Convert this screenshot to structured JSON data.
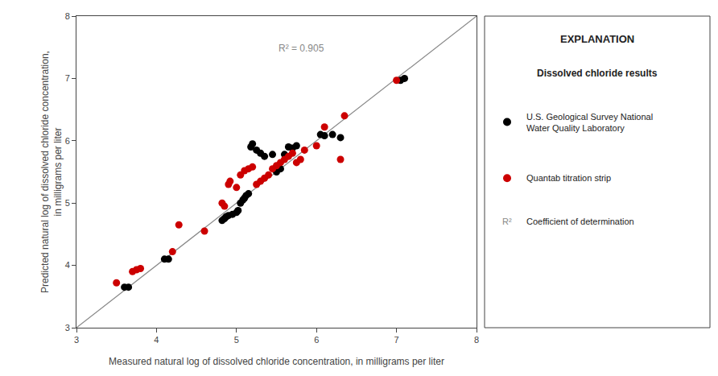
{
  "chart_data": {
    "type": "scatter",
    "xlabel": "Measured natural log of dissolved chloride concentration, in milligrams per liter",
    "ylabel": "Predicted natural log of dissolved chloride concentration,\nin milligrams per liter",
    "xlim": [
      3,
      8
    ],
    "ylim": [
      3,
      8
    ],
    "xticks": [
      3,
      4,
      5,
      6,
      7,
      8
    ],
    "yticks": [
      3,
      4,
      5,
      6,
      7,
      8
    ],
    "grid": false,
    "legend": "right",
    "legend_title": "EXPLANATION",
    "legend_subtitle": "Dissolved chloride results",
    "legend_note": {
      "symbol": "R²",
      "text": "Coefficient of determination",
      "color": "#888888"
    },
    "annotations": [
      {
        "text": "R² = 0.905",
        "x": 5.5,
        "y": 7.6,
        "color": "#888888"
      }
    ],
    "series": [
      {
        "type": "line",
        "color": "#888888",
        "x": [
          3.0,
          8.0
        ],
        "values": [
          3.0,
          8.0
        ]
      },
      {
        "name": "U.S. Geological Survey National\nWater Quality Laboratory",
        "color": "#000000",
        "marker": "circle",
        "x": [
          3.6,
          3.65,
          4.1,
          4.15,
          4.82,
          4.85,
          4.87,
          4.9,
          4.95,
          5.0,
          5.02,
          5.05,
          5.08,
          5.1,
          5.12,
          5.15,
          5.18,
          5.2,
          5.25,
          5.3,
          5.35,
          5.45,
          5.5,
          5.55,
          5.6,
          5.65,
          5.7,
          5.75,
          6.05,
          6.1,
          6.2,
          6.3,
          7.05,
          7.1
        ],
        "values": [
          3.65,
          3.65,
          4.1,
          4.1,
          4.72,
          4.75,
          4.78,
          4.8,
          4.82,
          4.85,
          4.88,
          5.0,
          5.05,
          5.08,
          5.12,
          5.15,
          5.9,
          5.95,
          5.85,
          5.8,
          5.75,
          5.78,
          5.5,
          5.55,
          5.78,
          5.9,
          5.88,
          5.92,
          6.1,
          6.08,
          6.1,
          6.05,
          6.97,
          7.0
        ]
      },
      {
        "name": "Quantab titration strip",
        "color": "#cc0000",
        "marker": "circle",
        "x": [
          3.5,
          3.7,
          3.75,
          3.8,
          4.2,
          4.28,
          4.6,
          4.82,
          4.85,
          4.9,
          4.92,
          5.0,
          5.05,
          5.1,
          5.15,
          5.2,
          5.25,
          5.3,
          5.35,
          5.4,
          5.45,
          5.5,
          5.55,
          5.6,
          5.65,
          5.7,
          5.75,
          5.8,
          5.85,
          6.0,
          6.1,
          6.3,
          6.35,
          7.0
        ],
        "values": [
          3.72,
          3.9,
          3.93,
          3.95,
          4.22,
          4.65,
          4.55,
          5.0,
          4.95,
          5.3,
          5.35,
          5.25,
          5.45,
          5.52,
          5.55,
          5.58,
          5.3,
          5.35,
          5.4,
          5.45,
          5.55,
          5.6,
          5.65,
          5.7,
          5.75,
          5.8,
          5.65,
          5.7,
          5.85,
          5.92,
          6.22,
          5.7,
          6.4,
          6.97
        ]
      }
    ]
  }
}
